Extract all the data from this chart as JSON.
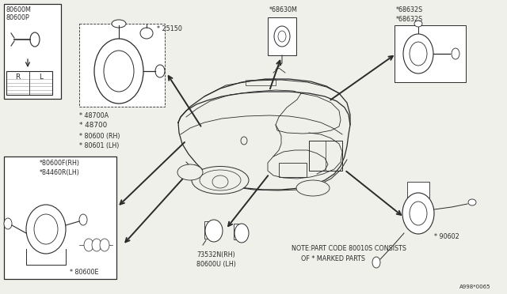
{
  "bg_color": "#f0f0eb",
  "line_color": "#2a2a2a",
  "ref_code": "A998*0065",
  "fs": 5.8,
  "fs_tiny": 5.0,
  "labels": {
    "tl_top": [
      "80600M",
      "80600P"
    ],
    "lock_labels": [
      "* 48700A",
      "* 48700",
      "* 80600 (RH)",
      "* 80601 (LH)"
    ],
    "ignition": "* 25150",
    "bl_labels": [
      "*80600F(RH)",
      "*84460R(LH)",
      "* 80600E"
    ],
    "top_center": "*68630M",
    "top_right": [
      "*68632S",
      "*68632S"
    ],
    "bot_center": [
      "73532N(RH)",
      "80600U (LH)"
    ],
    "bot_right": "* 90602",
    "note": [
      "NOTE:PART CODE 80010S CONSISTS",
      "OF * MARKED PARTS"
    ]
  }
}
